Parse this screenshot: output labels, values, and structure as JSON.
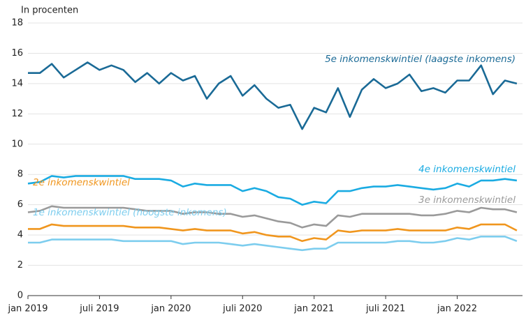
{
  "chart_data": {
    "type": "line",
    "y_label": "In procenten",
    "categories": [
      "jan 2019",
      null,
      null,
      null,
      null,
      null,
      "juli 2019",
      null,
      null,
      null,
      null,
      null,
      "jan 2020",
      null,
      null,
      null,
      null,
      null,
      "juli 2020",
      null,
      null,
      null,
      null,
      null,
      "jan 2021",
      null,
      null,
      null,
      null,
      null,
      "juli 2021",
      null,
      null,
      null,
      null,
      null,
      "jan 2022",
      null,
      null,
      null,
      null,
      null
    ],
    "ylim": [
      0,
      18
    ],
    "yticks": [
      0,
      2,
      4,
      6,
      8,
      10,
      12,
      14,
      16,
      18
    ],
    "grid": true,
    "series": [
      {
        "name": "5e inkomenskwintiel (laagste inkomens)",
        "color": "#1a6a96",
        "values": [
          14.7,
          14.7,
          15.3,
          14.4,
          14.9,
          15.4,
          14.9,
          15.2,
          14.9,
          14.1,
          14.7,
          14.0,
          14.7,
          14.2,
          14.5,
          13.0,
          14.0,
          14.5,
          13.2,
          13.9,
          13.0,
          12.4,
          12.6,
          11.0,
          12.4,
          12.1,
          13.7,
          11.8,
          13.6,
          14.3,
          13.7,
          14.0,
          14.6,
          13.5,
          13.7,
          13.4,
          14.2,
          14.2,
          15.2,
          13.3,
          14.2,
          14.0
        ]
      },
      {
        "name": "4e inkomenskwintiel",
        "color": "#1aabe2",
        "values": [
          7.4,
          7.5,
          7.9,
          7.8,
          7.9,
          7.9,
          7.9,
          7.9,
          7.9,
          7.7,
          7.7,
          7.7,
          7.6,
          7.2,
          7.4,
          7.3,
          7.3,
          7.3,
          6.9,
          7.1,
          6.9,
          6.5,
          6.4,
          6.0,
          6.2,
          6.1,
          6.9,
          6.9,
          7.1,
          7.2,
          7.2,
          7.3,
          7.2,
          7.1,
          7.0,
          7.1,
          7.4,
          7.2,
          7.6,
          7.6,
          7.7,
          7.6
        ]
      },
      {
        "name": "3e inkomenskwintiel",
        "color": "#9a9a9a",
        "values": [
          5.5,
          5.6,
          5.9,
          5.8,
          5.8,
          5.8,
          5.8,
          5.8,
          5.8,
          5.7,
          5.6,
          5.6,
          5.6,
          5.4,
          5.5,
          5.5,
          5.4,
          5.4,
          5.2,
          5.3,
          5.1,
          4.9,
          4.8,
          4.5,
          4.7,
          4.6,
          5.3,
          5.2,
          5.4,
          5.4,
          5.4,
          5.4,
          5.4,
          5.3,
          5.3,
          5.4,
          5.6,
          5.5,
          5.8,
          5.7,
          5.7,
          5.5
        ]
      },
      {
        "name": "2e inkomenskwintiel",
        "color": "#f0961e",
        "values": [
          4.4,
          4.4,
          4.7,
          4.6,
          4.6,
          4.6,
          4.6,
          4.6,
          4.6,
          4.5,
          4.5,
          4.5,
          4.4,
          4.3,
          4.4,
          4.3,
          4.3,
          4.3,
          4.1,
          4.2,
          4.0,
          3.9,
          3.9,
          3.6,
          3.8,
          3.7,
          4.3,
          4.2,
          4.3,
          4.3,
          4.3,
          4.4,
          4.3,
          4.3,
          4.3,
          4.3,
          4.5,
          4.4,
          4.7,
          4.7,
          4.7,
          4.3
        ]
      },
      {
        "name": "1e inkomenskwintiel (hoogste inkomens)",
        "color": "#7dcdee",
        "values": [
          3.5,
          3.5,
          3.7,
          3.7,
          3.7,
          3.7,
          3.7,
          3.7,
          3.6,
          3.6,
          3.6,
          3.6,
          3.6,
          3.4,
          3.5,
          3.5,
          3.5,
          3.4,
          3.3,
          3.4,
          3.3,
          3.2,
          3.1,
          3.0,
          3.1,
          3.1,
          3.5,
          3.5,
          3.5,
          3.5,
          3.5,
          3.6,
          3.6,
          3.5,
          3.5,
          3.6,
          3.8,
          3.7,
          3.9,
          3.9,
          3.9,
          3.6
        ]
      }
    ]
  }
}
